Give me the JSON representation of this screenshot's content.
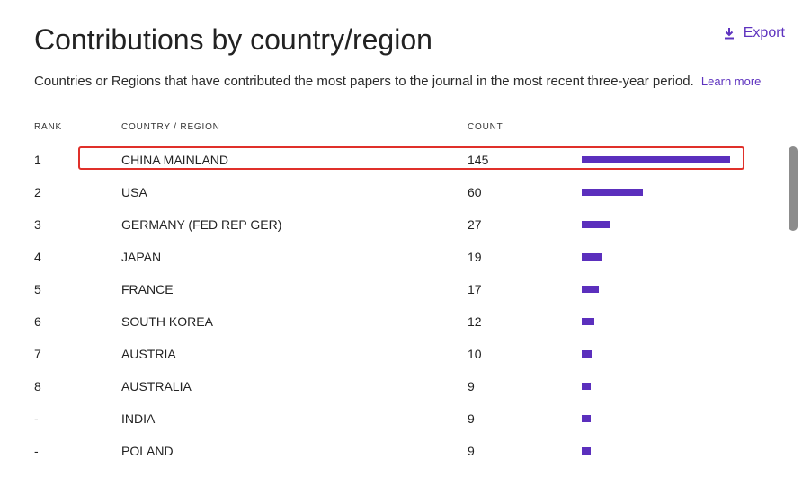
{
  "header": {
    "title": "Contributions by country/region",
    "export_label": "Export",
    "subtitle": "Countries or Regions that have contributed the most papers to the journal in the most recent three-year period.",
    "learn_more": "Learn more"
  },
  "table": {
    "columns": {
      "rank": "RANK",
      "country": "COUNTRY / REGION",
      "count": "COUNT"
    },
    "max_count": 145,
    "rows": [
      {
        "rank": "1",
        "country": "CHINA MAINLAND",
        "count": "145"
      },
      {
        "rank": "2",
        "country": "USA",
        "count": "60"
      },
      {
        "rank": "3",
        "country": "GERMANY (FED REP GER)",
        "count": "27"
      },
      {
        "rank": "4",
        "country": "JAPAN",
        "count": "19"
      },
      {
        "rank": "5",
        "country": "FRANCE",
        "count": "17"
      },
      {
        "rank": "6",
        "country": "SOUTH KOREA",
        "count": "12"
      },
      {
        "rank": "7",
        "country": "AUSTRIA",
        "count": "10"
      },
      {
        "rank": "8",
        "country": "AUSTRALIA",
        "count": "9"
      },
      {
        "rank": "-",
        "country": "INDIA",
        "count": "9"
      },
      {
        "rank": "-",
        "country": "POLAND",
        "count": "9"
      }
    ]
  },
  "colors": {
    "accent": "#5e33bf",
    "bar": "#5b2fbd",
    "highlight": "#e0302a"
  }
}
